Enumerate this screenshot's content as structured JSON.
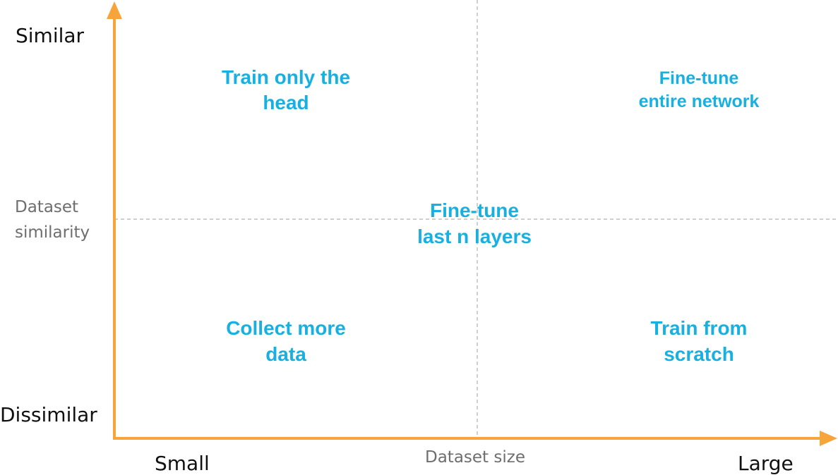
{
  "y_axis": {
    "top_label": "Similar",
    "bottom_label": "Dissimilar",
    "title_line1": "Dataset",
    "title_line2": "similarity"
  },
  "x_axis": {
    "left_label": "Small",
    "right_label": "Large",
    "title": "Dataset size"
  },
  "quadrants": {
    "top_left": [
      "Train only the",
      "head"
    ],
    "top_right": [
      "Fine-tune",
      "entire network"
    ],
    "center": [
      "Fine-tune",
      "last n layers"
    ],
    "bottom_left": [
      "Collect more",
      "data"
    ],
    "bottom_right": [
      "Train from",
      "scratch"
    ]
  },
  "colors": {
    "axis": "#f7a43b",
    "quadrant_text": "#17b0e0",
    "divider": "#b0b0b0"
  }
}
